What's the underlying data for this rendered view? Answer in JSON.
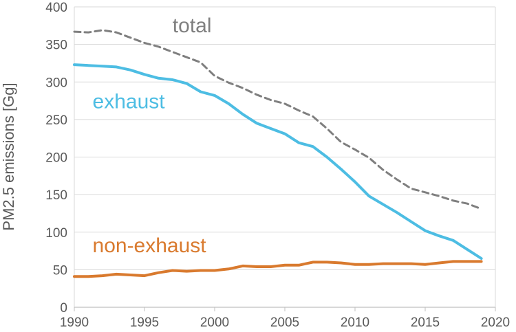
{
  "chart_data": {
    "type": "line",
    "title": "",
    "xlabel": "",
    "ylabel": "PM2.5 emissions [Gg]",
    "xlim": [
      1990,
      2020
    ],
    "ylim": [
      0,
      400
    ],
    "x_ticks": [
      "1990",
      "1995",
      "2000",
      "2005",
      "2010",
      "2015",
      "2020"
    ],
    "y_ticks": [
      "0",
      "50",
      "100",
      "150",
      "200",
      "250",
      "300",
      "350",
      "400"
    ],
    "grid": "horizontal",
    "legend": "inline labels",
    "series": [
      {
        "name": "total",
        "color": "#7f7f7f",
        "style": "dashed",
        "x": [
          1990,
          1991,
          1992,
          1993,
          1994,
          1995,
          1996,
          1997,
          1998,
          1999,
          2000,
          2001,
          2002,
          2003,
          2004,
          2005,
          2006,
          2007,
          2008,
          2009,
          2010,
          2011,
          2012,
          2013,
          2014,
          2015,
          2016,
          2017,
          2018,
          2019
        ],
        "values": [
          367,
          366,
          369,
          366,
          359,
          352,
          347,
          340,
          333,
          326,
          308,
          299,
          292,
          283,
          276,
          271,
          262,
          254,
          238,
          220,
          210,
          199,
          183,
          170,
          158,
          153,
          148,
          142,
          138,
          131
        ]
      },
      {
        "name": "exhaust",
        "color": "#4dbde3",
        "style": "solid",
        "x": [
          1990,
          1991,
          1992,
          1993,
          1994,
          1995,
          1996,
          1997,
          1998,
          1999,
          2000,
          2001,
          2002,
          2003,
          2004,
          2005,
          2006,
          2007,
          2008,
          2009,
          2010,
          2011,
          2012,
          2013,
          2014,
          2015,
          2016,
          2017,
          2018,
          2019
        ],
        "values": [
          323,
          322,
          321,
          320,
          316,
          310,
          305,
          303,
          298,
          287,
          282,
          271,
          257,
          245,
          238,
          231,
          219,
          214,
          200,
          184,
          167,
          148,
          137,
          126,
          114,
          102,
          95,
          89,
          77,
          65
        ]
      },
      {
        "name": "non-exhaust",
        "color": "#d97a2e",
        "style": "solid",
        "x": [
          1990,
          1991,
          1992,
          1993,
          1994,
          1995,
          1996,
          1997,
          1998,
          1999,
          2000,
          2001,
          2002,
          2003,
          2004,
          2005,
          2006,
          2007,
          2008,
          2009,
          2010,
          2011,
          2012,
          2013,
          2014,
          2015,
          2016,
          2017,
          2018,
          2019
        ],
        "values": [
          41,
          41,
          42,
          44,
          43,
          42,
          46,
          49,
          48,
          49,
          49,
          51,
          55,
          54,
          54,
          56,
          56,
          60,
          60,
          59,
          57,
          57,
          58,
          58,
          58,
          57,
          59,
          61,
          61,
          61
        ]
      }
    ]
  }
}
